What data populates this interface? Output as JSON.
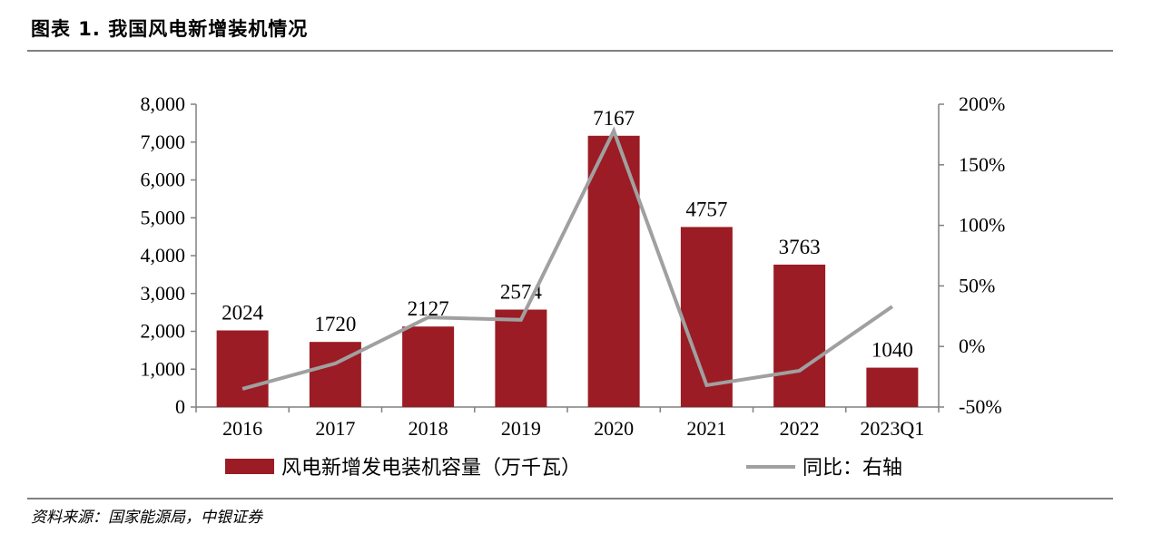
{
  "title": "图表 1. 我国风电新增装机情况",
  "source": "资料来源：国家能源局，中银证券",
  "chart_data": {
    "type": "bar",
    "categories": [
      "2016",
      "2017",
      "2018",
      "2019",
      "2020",
      "2021",
      "2022",
      "2023Q1"
    ],
    "series": [
      {
        "name": "风电新增发电装机容量（万千瓦）",
        "type": "bar",
        "axis": "left",
        "values": [
          2024,
          1720,
          2127,
          2574,
          7167,
          4757,
          3763,
          1040
        ]
      },
      {
        "name": "同比：右轴",
        "type": "line",
        "axis": "right",
        "values": [
          -0.35,
          -0.14,
          0.24,
          0.22,
          1.78,
          -0.32,
          -0.2,
          0.33
        ]
      }
    ],
    "left_axis": {
      "range": [
        0,
        8000
      ],
      "ticks": [
        0,
        1000,
        2000,
        3000,
        4000,
        5000,
        6000,
        7000,
        8000
      ],
      "tick_labels": [
        "0",
        "1,000",
        "2,000",
        "3,000",
        "4,000",
        "5,000",
        "6,000",
        "7,000",
        "8,000"
      ]
    },
    "right_axis": {
      "range": [
        -0.5,
        2.0
      ],
      "ticks": [
        -0.5,
        0,
        0.5,
        1.0,
        1.5,
        2.0
      ],
      "tick_labels": [
        "-50%",
        "0%",
        "50%",
        "100%",
        "150%",
        "200%"
      ]
    },
    "grid": false,
    "legend_position": "bottom",
    "colors": {
      "bar": "#9b1c24",
      "line": "#a0a0a0",
      "axis": "#808080"
    }
  }
}
